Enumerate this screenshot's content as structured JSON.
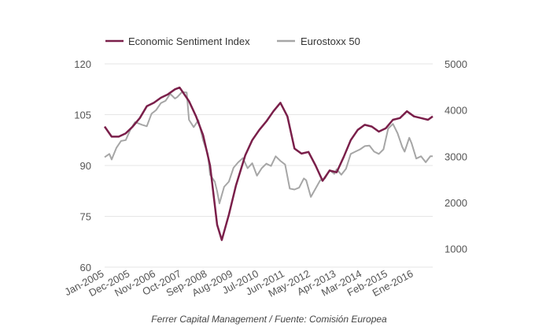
{
  "caption": "Ferrer Capital Management / Fuente: Comisión Europea",
  "chart_data": {
    "type": "line",
    "title": "",
    "grid": true,
    "legend_placement": "top-left",
    "x_tick_labels": [
      "Jan-2005",
      "Dec-2005",
      "Nov-2006",
      "Oct-2007",
      "Sep-2008",
      "Aug-2009",
      "Jul-2010",
      "Jun-2011",
      "May-2012",
      "Apr-2013",
      "Mar-2014",
      "Feb-2015",
      "Ene-2016"
    ],
    "y_left": {
      "ticks": [
        60,
        75,
        90,
        105,
        120
      ],
      "range": [
        60,
        120
      ]
    },
    "y_right": {
      "ticks": [
        1000,
        2000,
        3000,
        4000,
        5000
      ],
      "range": [
        600,
        5000
      ]
    },
    "x_range": [
      "Jan-2005",
      "Sep-2016"
    ],
    "series": [
      {
        "name": "Economic Sentiment Index",
        "axis": "left",
        "color": "#7a1f4a",
        "points": [
          [
            "Jan-2005",
            101.5
          ],
          [
            "Apr-2005",
            98.5
          ],
          [
            "Jul-2005",
            98.5
          ],
          [
            "Oct-2005",
            99.5
          ],
          [
            "Jan-2006",
            101.5
          ],
          [
            "Apr-2006",
            104.0
          ],
          [
            "Jul-2006",
            107.5
          ],
          [
            "Oct-2006",
            108.5
          ],
          [
            "Jan-2007",
            110.0
          ],
          [
            "Apr-2007",
            111.0
          ],
          [
            "Jul-2007",
            112.5
          ],
          [
            "Sep-2007",
            113.0
          ],
          [
            "Jan-2008",
            109.0
          ],
          [
            "Apr-2008",
            104.5
          ],
          [
            "Jul-2008",
            99.0
          ],
          [
            "Oct-2008",
            90.0
          ],
          [
            "Jan-2009",
            72.5
          ],
          [
            "Mar-2009",
            68.0
          ],
          [
            "Jun-2009",
            75.5
          ],
          [
            "Sep-2009",
            84.0
          ],
          [
            "Jan-2010",
            93.0
          ],
          [
            "Apr-2010",
            97.5
          ],
          [
            "Jul-2010",
            100.5
          ],
          [
            "Oct-2010",
            103.0
          ],
          [
            "Jan-2011",
            106.0
          ],
          [
            "Apr-2011",
            108.5
          ],
          [
            "Jul-2011",
            104.5
          ],
          [
            "Oct-2011",
            95.0
          ],
          [
            "Jan-2012",
            93.5
          ],
          [
            "Apr-2012",
            94.0
          ],
          [
            "Jul-2012",
            90.0
          ],
          [
            "Oct-2012",
            85.5
          ],
          [
            "Jan-2013",
            88.5
          ],
          [
            "Apr-2013",
            88.0
          ],
          [
            "Jul-2013",
            92.5
          ],
          [
            "Oct-2013",
            97.5
          ],
          [
            "Jan-2014",
            100.5
          ],
          [
            "Apr-2014",
            102.0
          ],
          [
            "Jul-2014",
            101.5
          ],
          [
            "Oct-2014",
            100.0
          ],
          [
            "Jan-2015",
            101.0
          ],
          [
            "Apr-2015",
            103.5
          ],
          [
            "Jul-2015",
            104.0
          ],
          [
            "Oct-2015",
            106.0
          ],
          [
            "Jan-2016",
            104.5
          ],
          [
            "Apr-2016",
            104.0
          ],
          [
            "Jul-2016",
            103.5
          ],
          [
            "Sep-2016",
            104.5
          ]
        ]
      },
      {
        "name": "Eurostoxx 50",
        "axis": "right",
        "color": "#a6a6a6",
        "points": [
          [
            "Jan-2005",
            2980
          ],
          [
            "Mar-2005",
            3050
          ],
          [
            "Apr-2005",
            2930
          ],
          [
            "Jun-2005",
            3180
          ],
          [
            "Aug-2005",
            3330
          ],
          [
            "Oct-2005",
            3350
          ],
          [
            "Dec-2005",
            3580
          ],
          [
            "Feb-2006",
            3740
          ],
          [
            "May-2006",
            3680
          ],
          [
            "Jul-2006",
            3650
          ],
          [
            "Sep-2006",
            3920
          ],
          [
            "Nov-2006",
            4000
          ],
          [
            "Jan-2007",
            4150
          ],
          [
            "Mar-2007",
            4200
          ],
          [
            "May-2007",
            4350
          ],
          [
            "Jul-2007",
            4250
          ],
          [
            "Aug-2007",
            4280
          ],
          [
            "Oct-2007",
            4390
          ],
          [
            "Dec-2007",
            4380
          ],
          [
            "Jan-2008",
            3790
          ],
          [
            "Mar-2008",
            3630
          ],
          [
            "May-2008",
            3780
          ],
          [
            "Jul-2008",
            3350
          ],
          [
            "Sep-2008",
            3050
          ],
          [
            "Oct-2008",
            2600
          ],
          [
            "Dec-2008",
            2450
          ],
          [
            "Jan-2009",
            2240
          ],
          [
            "Feb-2009",
            1980
          ],
          [
            "Apr-2009",
            2340
          ],
          [
            "Jun-2009",
            2450
          ],
          [
            "Aug-2009",
            2750
          ],
          [
            "Oct-2009",
            2870
          ],
          [
            "Dec-2009",
            2960
          ],
          [
            "Feb-2010",
            2740
          ],
          [
            "Apr-2010",
            2850
          ],
          [
            "Jun-2010",
            2580
          ],
          [
            "Aug-2010",
            2740
          ],
          [
            "Oct-2010",
            2840
          ],
          [
            "Dec-2010",
            2790
          ],
          [
            "Feb-2011",
            3000
          ],
          [
            "Apr-2011",
            2900
          ],
          [
            "Jun-2011",
            2820
          ],
          [
            "Aug-2011",
            2300
          ],
          [
            "Oct-2011",
            2280
          ],
          [
            "Dec-2011",
            2320
          ],
          [
            "Feb-2012",
            2520
          ],
          [
            "Mar-2012",
            2480
          ],
          [
            "May-2012",
            2120
          ],
          [
            "Jul-2012",
            2300
          ],
          [
            "Sep-2012",
            2480
          ],
          [
            "Nov-2012",
            2520
          ],
          [
            "Jan-2013",
            2700
          ],
          [
            "Mar-2013",
            2620
          ],
          [
            "Apr-2013",
            2720
          ],
          [
            "Jun-2013",
            2600
          ],
          [
            "Aug-2013",
            2730
          ],
          [
            "Oct-2013",
            3050
          ],
          [
            "Dec-2013",
            3100
          ],
          [
            "Feb-2014",
            3150
          ],
          [
            "Apr-2014",
            3220
          ],
          [
            "Jun-2014",
            3230
          ],
          [
            "Aug-2014",
            3100
          ],
          [
            "Oct-2014",
            3050
          ],
          [
            "Dec-2014",
            3150
          ],
          [
            "Feb-2015",
            3600
          ],
          [
            "Apr-2015",
            3700
          ],
          [
            "Jun-2015",
            3500
          ],
          [
            "Aug-2015",
            3200
          ],
          [
            "Sep-2015",
            3100
          ],
          [
            "Nov-2015",
            3400
          ],
          [
            "Dec-2015",
            3280
          ],
          [
            "Feb-2016",
            2950
          ],
          [
            "Apr-2016",
            3000
          ],
          [
            "Jun-2016",
            2870
          ],
          [
            "Aug-2016",
            3000
          ],
          [
            "Sep-2016",
            3000
          ]
        ]
      }
    ]
  }
}
